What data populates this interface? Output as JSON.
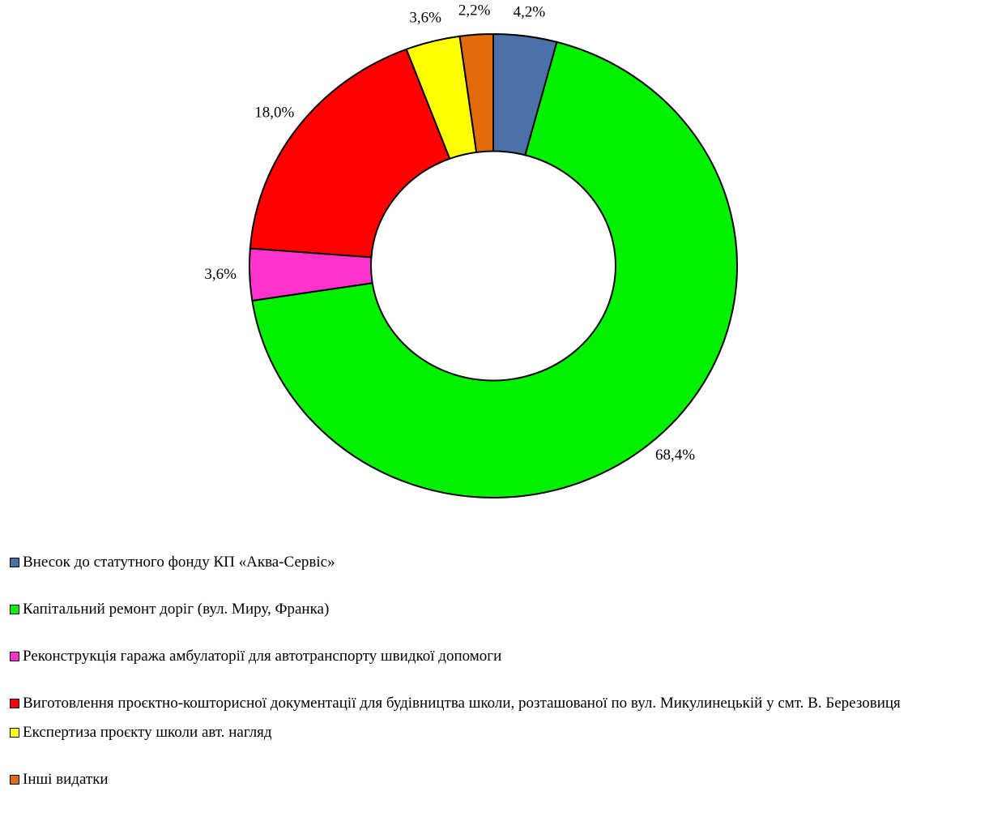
{
  "chart_data": {
    "type": "donut",
    "categories": [
      "Внесок до статутного фонду КП «Аква-Сервіс»",
      "Капітальний  ремонт доріг (вул. Миру, Франка)",
      "Реконструкція гаража амбулаторії для автотранспорту швидкої допомоги",
      "Виготовлення проєктно-кошторисної документації для будівництва школи, розташованої по вул.  Микулинецькій у смт. В. Березовиця",
      "Експертиза проєкту школи  авт. нагляд",
      "Інші видатки"
    ],
    "values": [
      4.2,
      68.4,
      3.6,
      18.0,
      3.6,
      2.2
    ],
    "value_labels": [
      "4,2%",
      "68,4%",
      "3,6%",
      "18,0%",
      "3,6%",
      "2,2%"
    ],
    "colors": [
      "#4a72a6",
      "#00f000",
      "#ff33cc",
      "#ff0000",
      "#ffff00",
      "#e36c0a"
    ],
    "legend": "bottom"
  }
}
